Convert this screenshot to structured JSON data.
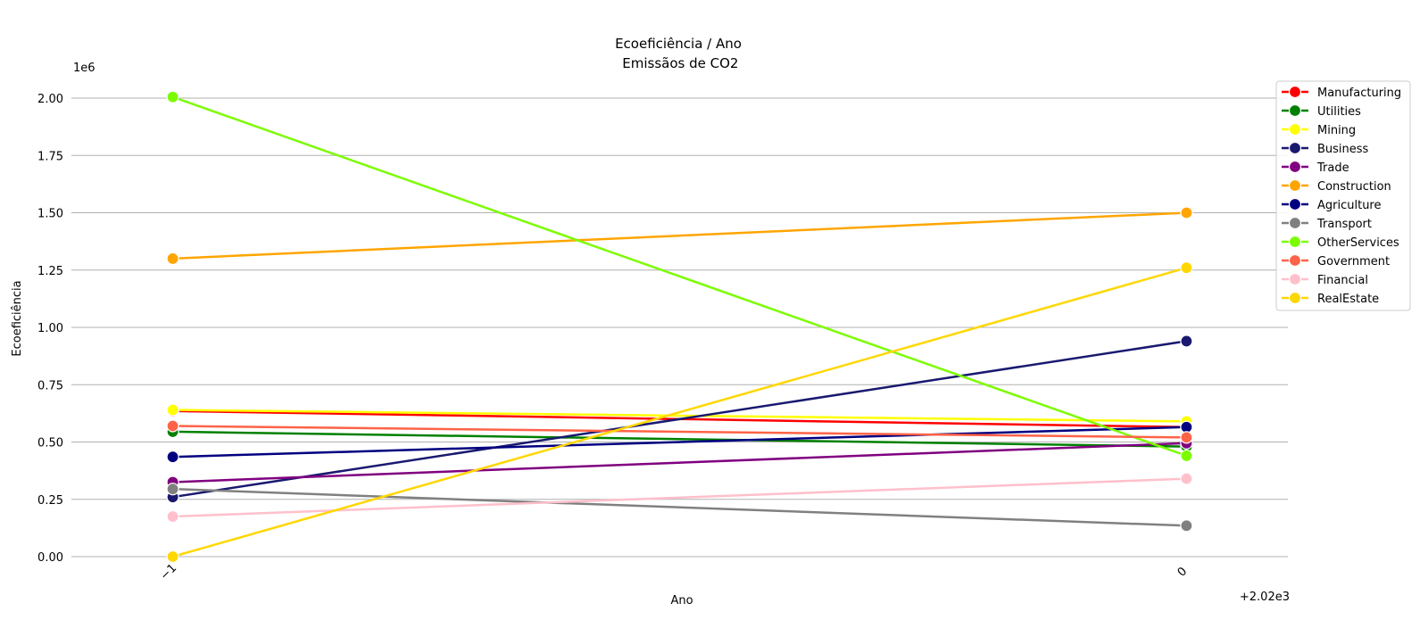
{
  "chart_data": {
    "type": "line",
    "title_line1": "Ecoeficiência / Ano",
    "title_line2": " Emissãos de CO2",
    "xlabel": "Ano",
    "ylabel": "Ecoeficiência",
    "y_multiplier_label": "1e6",
    "x_offset_label": "+2.02e3",
    "x_tick_labels": [
      "−1",
      "0"
    ],
    "x": [
      -1,
      0
    ],
    "ylim": [
      0,
      2000000
    ],
    "y_ticks": [
      0,
      250000,
      500000,
      750000,
      1000000,
      1250000,
      1500000,
      1750000,
      2000000
    ],
    "y_tick_labels": [
      "0.00",
      "0.25",
      "0.50",
      "0.75",
      "1.00",
      "1.25",
      "1.50",
      "1.75",
      "2.00"
    ],
    "grid": "horizontal",
    "legend_position": "right",
    "series": [
      {
        "name": "Manufacturing",
        "color": "#ff0000",
        "values": [
          635000,
          565000
        ]
      },
      {
        "name": "Utilities",
        "color": "#008000",
        "values": [
          545000,
          480000
        ]
      },
      {
        "name": "Mining",
        "color": "#ffff00",
        "values": [
          640000,
          590000
        ]
      },
      {
        "name": "Business",
        "color": "#191970",
        "values": [
          260000,
          940000
        ]
      },
      {
        "name": "Trade",
        "color": "#800080",
        "values": [
          325000,
          495000
        ]
      },
      {
        "name": "Construction",
        "color": "#ffa500",
        "values": [
          1300000,
          1500000
        ]
      },
      {
        "name": "Agriculture",
        "color": "#000080",
        "values": [
          435000,
          565000
        ]
      },
      {
        "name": "Transport",
        "color": "#808080",
        "values": [
          295000,
          135000
        ]
      },
      {
        "name": "OtherServices",
        "color": "#7cfc00",
        "values": [
          2005000,
          440000
        ]
      },
      {
        "name": "Government",
        "color": "#ff6347",
        "values": [
          570000,
          520000
        ]
      },
      {
        "name": "Financial",
        "color": "#ffc0cb",
        "values": [
          175000,
          340000
        ]
      },
      {
        "name": "RealEstate",
        "color": "#ffd700",
        "values": [
          0,
          1260000
        ]
      }
    ]
  }
}
